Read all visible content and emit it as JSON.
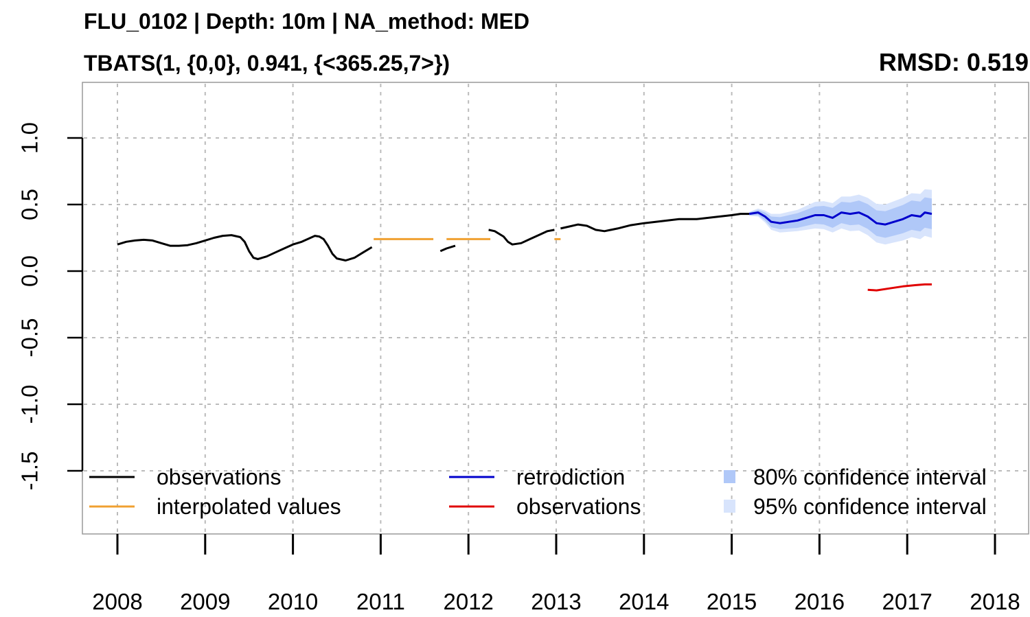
{
  "header": {
    "title": "FLU_0102 | Depth: 10m | NA_method: MED",
    "subtitle": "TBATS(1, {0,0}, 0.941, {<365.25,7>})",
    "rmsd": "RMSD: 0.519"
  },
  "chart_data": {
    "type": "line",
    "title": "FLU_0102 | Depth: 10m | NA_method: MED",
    "subtitle": "TBATS(1, {0,0}, 0.941, {<365.25,7>})",
    "annotation": "RMSD: 0.519",
    "xlabel": "",
    "ylabel": "",
    "xlim": [
      2008,
      2018
    ],
    "ylim": [
      -1.5,
      1.0
    ],
    "x_ticks": [
      2008,
      2009,
      2010,
      2011,
      2012,
      2013,
      2014,
      2015,
      2016,
      2017,
      2018
    ],
    "x_tick_labels": [
      "2008",
      "2009",
      "2010",
      "2011",
      "2012",
      "2013",
      "2014",
      "2015",
      "2016",
      "2017",
      "2018"
    ],
    "y_ticks": [
      -1.5,
      -1.0,
      -0.5,
      0.0,
      0.5,
      1.0
    ],
    "y_tick_labels": [
      "-1.5",
      "-1.0",
      "-0.5",
      "0.0",
      "0.5",
      "1.0"
    ],
    "grid": true,
    "legend_placement": "bottom",
    "colors": {
      "observations": "#000000",
      "interpolated": "#f0a030",
      "retrodiction": "#0000cc",
      "observations_test": "#e00000",
      "ci80": "#b0c8f8",
      "ci95": "#d8e4fc",
      "grid": "#bbbbbb"
    },
    "series": [
      {
        "name": "observations",
        "role": "observed",
        "segments": [
          [
            [
              2008.0,
              0.2
            ],
            [
              2008.1,
              0.22
            ],
            [
              2008.2,
              0.23
            ],
            [
              2008.3,
              0.235
            ],
            [
              2008.4,
              0.23
            ],
            [
              2008.5,
              0.21
            ],
            [
              2008.6,
              0.19
            ],
            [
              2008.7,
              0.19
            ],
            [
              2008.8,
              0.195
            ],
            [
              2008.9,
              0.21
            ],
            [
              2009.0,
              0.23
            ],
            [
              2009.1,
              0.25
            ],
            [
              2009.2,
              0.265
            ],
            [
              2009.3,
              0.27
            ],
            [
              2009.4,
              0.255
            ],
            [
              2009.45,
              0.22
            ],
            [
              2009.5,
              0.15
            ],
            [
              2009.55,
              0.1
            ],
            [
              2009.6,
              0.09
            ],
            [
              2009.7,
              0.11
            ],
            [
              2009.8,
              0.14
            ],
            [
              2009.9,
              0.17
            ],
            [
              2010.0,
              0.2
            ],
            [
              2010.1,
              0.22
            ],
            [
              2010.2,
              0.25
            ],
            [
              2010.25,
              0.265
            ],
            [
              2010.3,
              0.26
            ],
            [
              2010.35,
              0.24
            ],
            [
              2010.4,
              0.19
            ],
            [
              2010.45,
              0.13
            ],
            [
              2010.5,
              0.095
            ],
            [
              2010.6,
              0.08
            ],
            [
              2010.7,
              0.1
            ],
            [
              2010.8,
              0.14
            ],
            [
              2010.9,
              0.18
            ]
          ],
          [
            [
              2011.68,
              0.15
            ],
            [
              2011.75,
              0.17
            ],
            [
              2011.85,
              0.19
            ]
          ],
          [
            [
              2012.23,
              0.31
            ],
            [
              2012.3,
              0.3
            ],
            [
              2012.4,
              0.26
            ],
            [
              2012.45,
              0.22
            ],
            [
              2012.5,
              0.2
            ],
            [
              2012.6,
              0.21
            ],
            [
              2012.7,
              0.24
            ],
            [
              2012.8,
              0.27
            ],
            [
              2012.9,
              0.3
            ],
            [
              2012.98,
              0.31
            ]
          ],
          [
            [
              2013.05,
              0.32
            ],
            [
              2013.15,
              0.335
            ],
            [
              2013.25,
              0.35
            ],
            [
              2013.35,
              0.34
            ],
            [
              2013.45,
              0.31
            ],
            [
              2013.55,
              0.3
            ],
            [
              2013.7,
              0.32
            ],
            [
              2013.85,
              0.345
            ],
            [
              2014.0,
              0.36
            ],
            [
              2014.2,
              0.375
            ],
            [
              2014.4,
              0.39
            ],
            [
              2014.6,
              0.39
            ],
            [
              2014.8,
              0.405
            ],
            [
              2015.0,
              0.42
            ],
            [
              2015.1,
              0.43
            ],
            [
              2015.2,
              0.43
            ]
          ]
        ]
      },
      {
        "name": "interpolated values",
        "role": "interpolated",
        "segments": [
          [
            [
              2010.92,
              0.24
            ],
            [
              2011.6,
              0.24
            ]
          ],
          [
            [
              2011.75,
              0.24
            ],
            [
              2012.25,
              0.24
            ]
          ],
          [
            [
              2012.98,
              0.24
            ],
            [
              2013.05,
              0.24
            ]
          ]
        ]
      },
      {
        "name": "retrodiction",
        "role": "forecast",
        "points": [
          [
            2015.2,
            0.43
          ],
          [
            2015.3,
            0.44
          ],
          [
            2015.38,
            0.41
          ],
          [
            2015.45,
            0.37
          ],
          [
            2015.55,
            0.36
          ],
          [
            2015.65,
            0.37
          ],
          [
            2015.75,
            0.38
          ],
          [
            2015.85,
            0.4
          ],
          [
            2015.95,
            0.42
          ],
          [
            2016.05,
            0.42
          ],
          [
            2016.15,
            0.4
          ],
          [
            2016.25,
            0.44
          ],
          [
            2016.35,
            0.43
          ],
          [
            2016.45,
            0.44
          ],
          [
            2016.55,
            0.41
          ],
          [
            2016.65,
            0.36
          ],
          [
            2016.75,
            0.35
          ],
          [
            2016.85,
            0.37
          ],
          [
            2016.95,
            0.39
          ],
          [
            2017.05,
            0.42
          ],
          [
            2017.15,
            0.41
          ],
          [
            2017.2,
            0.44
          ],
          [
            2017.28,
            0.43
          ]
        ],
        "ci80_half_width": [
          0.01,
          0.02,
          0.03,
          0.04,
          0.045,
          0.05,
          0.055,
          0.06,
          0.065,
          0.07,
          0.075,
          0.08,
          0.085,
          0.09,
          0.093,
          0.096,
          0.1,
          0.103,
          0.106,
          0.11,
          0.112,
          0.114,
          0.115
        ],
        "ci95_half_width": [
          0.015,
          0.03,
          0.045,
          0.06,
          0.07,
          0.075,
          0.08,
          0.09,
          0.1,
          0.105,
          0.11,
          0.12,
          0.13,
          0.135,
          0.14,
          0.145,
          0.15,
          0.155,
          0.16,
          0.165,
          0.17,
          0.175,
          0.18
        ]
      },
      {
        "name": "observations",
        "role": "test",
        "points": [
          [
            2016.55,
            -0.14
          ],
          [
            2016.65,
            -0.145
          ],
          [
            2016.8,
            -0.13
          ],
          [
            2016.95,
            -0.115
          ],
          [
            2017.1,
            -0.105
          ],
          [
            2017.2,
            -0.1
          ],
          [
            2017.28,
            -0.1
          ]
        ]
      }
    ],
    "legend": [
      {
        "label": "observations",
        "kind": "line",
        "color": "#000000"
      },
      {
        "label": "interpolated values",
        "kind": "line",
        "color": "#f0a030"
      },
      {
        "label": "retrodiction",
        "kind": "line",
        "color": "#0000cc"
      },
      {
        "label": "observations",
        "kind": "line",
        "color": "#e00000"
      },
      {
        "label": "80% confidence interval",
        "kind": "box",
        "color": "#b0c8f8"
      },
      {
        "label": "95% confidence interval",
        "kind": "box",
        "color": "#d8e4fc"
      }
    ]
  }
}
